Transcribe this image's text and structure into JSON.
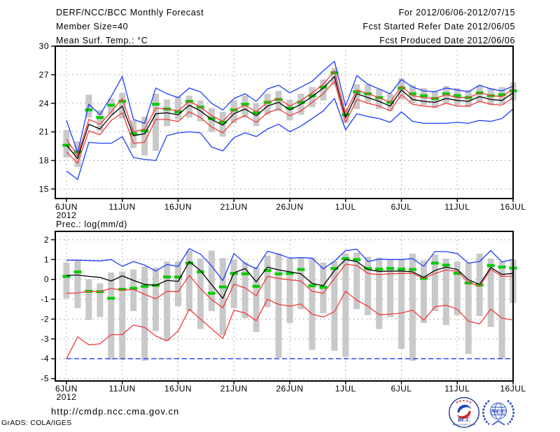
{
  "header": {
    "title": "DERF/NCC/BCC Monthly Forecast",
    "member_size": "Member Size=40",
    "for_range": "For 2012/06/06-2012/07/15",
    "fcst_started": "Fcst Started Refer Date 2012/06/05",
    "fcst_produced": "Fcst Produced Date 2012/06/06"
  },
  "footer": {
    "url": "http://cmdp.ncc.cma.gov.cn",
    "credit": "GrADS: COLA/IGES",
    "bcc_logo_text": "BCC",
    "bcc_logo_subtext": "BEIJING CLIMATE CENTER",
    "ncc_logo_text": "NCC"
  },
  "colors": {
    "blue": "#1e3cff",
    "red": "#f03c3c",
    "green": "#00cc00",
    "black": "#000000",
    "bar_gray": "#c9c9c9",
    "grid_gray": "#999999"
  },
  "chart_data": [
    {
      "type": "line",
      "title": "Mean Surf. Temp.: °C",
      "ylabel": "°C",
      "start_date": "2012/06/06",
      "end_date": "2012/07/15",
      "n_days": 41,
      "ylim": [
        14,
        30
      ],
      "y_ticks": [
        15,
        18,
        21,
        24,
        27,
        30
      ],
      "x_tick_days": [
        0,
        5,
        10,
        15,
        20,
        25,
        30,
        35,
        40
      ],
      "x_tick_labels": [
        "6JUN",
        "11JUN",
        "16JUN",
        "21JUN",
        "26JUN",
        "1JUL",
        "6JUL",
        "11JUL",
        "16JUL"
      ],
      "x_year_label": "2012",
      "grid": true,
      "series": [
        {
          "name": "ensemble-min",
          "color": "#1e3cff",
          "dashed": false,
          "values": [
            16.9,
            16.0,
            19.9,
            19.8,
            19.8,
            20.5,
            18.3,
            18.1,
            18.0,
            20.6,
            20.9,
            21.0,
            20.9,
            19.4,
            19.0,
            20.4,
            20.9,
            20.5,
            21.3,
            21.8,
            21.0,
            21.6,
            22.4,
            23.2,
            24.5,
            21.2,
            22.9,
            22.6,
            22.4,
            22.0,
            23.1,
            22.1,
            21.9,
            21.9,
            21.9,
            22.0,
            21.9,
            22.2,
            22.1,
            22.4,
            23.4
          ]
        },
        {
          "name": "ensemble-max",
          "color": "#1e3cff",
          "dashed": false,
          "values": [
            22.2,
            18.8,
            23.9,
            22.8,
            24.7,
            26.8,
            22.3,
            21.9,
            25.6,
            25.0,
            24.6,
            25.6,
            25.2,
            24.0,
            23.3,
            24.5,
            25.0,
            24.2,
            25.5,
            25.9,
            25.1,
            25.7,
            26.3,
            27.4,
            28.4,
            23.7,
            26.9,
            26.0,
            25.5,
            25.0,
            26.5,
            25.7,
            25.3,
            25.2,
            25.6,
            25.4,
            25.2,
            25.9,
            25.5,
            25.3,
            25.8
          ]
        },
        {
          "name": "lower-quartile",
          "color": "#f03c3c",
          "dashed": false,
          "values": [
            18.9,
            17.7,
            21.1,
            20.7,
            22.2,
            23.0,
            19.8,
            19.9,
            22.3,
            22.3,
            22.1,
            23.1,
            22.5,
            21.5,
            20.9,
            22.2,
            22.7,
            22.0,
            23.0,
            23.4,
            22.7,
            23.2,
            24.1,
            25.0,
            26.3,
            22.0,
            24.4,
            24.0,
            23.7,
            23.2,
            24.9,
            23.9,
            23.7,
            23.6,
            24.0,
            23.7,
            23.7,
            24.2,
            23.9,
            23.8,
            24.6
          ]
        },
        {
          "name": "upper-quartile",
          "color": "#f03c3c",
          "dashed": false,
          "values": [
            20.2,
            18.5,
            22.3,
            21.8,
            23.1,
            24.5,
            21.0,
            21.3,
            23.5,
            23.4,
            23.2,
            24.2,
            23.6,
            22.7,
            22.1,
            23.3,
            23.8,
            23.1,
            24.1,
            24.5,
            23.7,
            24.3,
            25.1,
            26.0,
            27.4,
            23.0,
            25.4,
            25.0,
            24.6,
            24.1,
            25.8,
            24.8,
            24.6,
            24.5,
            24.9,
            24.6,
            24.6,
            25.1,
            24.8,
            24.7,
            25.5
          ]
        },
        {
          "name": "ensemble-mean",
          "color": "#000000",
          "dashed": false,
          "values": [
            19.6,
            18.2,
            21.8,
            21.3,
            22.7,
            23.7,
            20.6,
            20.8,
            22.9,
            23.0,
            22.8,
            23.8,
            23.2,
            22.3,
            21.7,
            22.9,
            23.4,
            22.7,
            23.7,
            24.1,
            23.3,
            23.9,
            24.7,
            25.6,
            26.8,
            22.5,
            25.0,
            24.6,
            24.2,
            23.7,
            25.4,
            24.4,
            24.2,
            24.1,
            24.5,
            24.3,
            24.2,
            24.7,
            24.4,
            24.3,
            25.1
          ]
        }
      ],
      "bars": {
        "name": "climatology-spread-bar",
        "color": "#c9c9c9",
        "top": [
          21.2,
          20.0,
          24.9,
          23.3,
          24.5,
          25.1,
          22.2,
          22.6,
          25.0,
          24.4,
          24.7,
          24.8,
          24.3,
          23.5,
          23.1,
          24.3,
          24.8,
          24.0,
          25.0,
          25.3,
          24.4,
          25.0,
          25.7,
          26.5,
          27.7,
          23.5,
          26.0,
          26.0,
          25.5,
          25.0,
          26.6,
          25.9,
          25.6,
          25.3,
          25.8,
          25.6,
          25.4,
          25.9,
          25.6,
          25.7,
          26.2
        ],
        "bottom": [
          18.3,
          17.3,
          22.5,
          21.1,
          22.8,
          22.4,
          19.3,
          18.5,
          19.0,
          21.6,
          22.3,
          22.5,
          22.1,
          21.0,
          20.5,
          21.9,
          22.5,
          21.6,
          22.8,
          23.2,
          22.2,
          22.8,
          23.6,
          24.3,
          25.9,
          21.9,
          23.4,
          24.1,
          23.4,
          23.2,
          24.4,
          24.0,
          23.8,
          23.5,
          24.0,
          23.8,
          23.6,
          24.1,
          23.8,
          23.9,
          24.3
        ]
      },
      "dashes": {
        "name": "observation-climatology-dash",
        "color": "#00cc00",
        "values": [
          19.6,
          18.9,
          23.3,
          22.5,
          23.8,
          24.2,
          20.8,
          21.1,
          23.9,
          23.4,
          23.1,
          24.2,
          23.6,
          22.4,
          22.0,
          23.3,
          23.9,
          23.0,
          24.1,
          24.4,
          23.5,
          24.1,
          24.8,
          25.7,
          27.2,
          22.8,
          25.2,
          25.0,
          24.6,
          24.1,
          25.6,
          25.0,
          24.8,
          24.5,
          25.0,
          24.8,
          24.6,
          25.1,
          24.8,
          24.9,
          25.3
        ]
      }
    },
    {
      "type": "line",
      "title": "Prec.: log(mm/d)",
      "ylabel": "log(mm/d)",
      "start_date": "2012/06/06",
      "end_date": "2012/07/15",
      "n_days": 41,
      "ylim": [
        -5.12,
        2.42
      ],
      "y_ticks": [
        -5,
        -4,
        -3,
        -2,
        -1,
        0,
        1,
        2
      ],
      "x_tick_days": [
        0,
        5,
        10,
        15,
        20,
        25,
        30,
        35,
        40
      ],
      "x_tick_labels": [
        "6JUN",
        "11JUN",
        "16JUN",
        "21JUN",
        "26JUN",
        "1JUL",
        "6JUL",
        "11JUL",
        "16JUL"
      ],
      "x_year_label": "2012",
      "grid": true,
      "series": [
        {
          "name": "ensemble-min-zero-precip-floor",
          "color": "#1e3cff",
          "dashed": true,
          "values": [
            -4.0,
            -4.0,
            -4.0,
            -4.0,
            -4.0,
            -4.0,
            -4.0,
            -4.0,
            -4.0,
            -4.0,
            -4.0,
            -4.0,
            -4.0,
            -4.0,
            -4.0,
            -4.0,
            -4.0,
            -4.0,
            -4.0,
            -4.0,
            -4.0,
            -4.0,
            -4.0,
            -4.0,
            -4.0,
            -4.0,
            -4.0,
            -4.0,
            -4.0,
            -4.0,
            -4.0,
            -4.0,
            -4.0,
            -4.0,
            -4.0,
            -4.0,
            -4.0,
            -4.0,
            -4.0,
            -4.0,
            -4.0
          ]
        },
        {
          "name": "ensemble-max",
          "color": "#1e3cff",
          "dashed": false,
          "values": [
            0.97,
            0.97,
            0.95,
            0.93,
            1.0,
            0.66,
            0.9,
            0.72,
            0.42,
            0.75,
            0.65,
            1.55,
            1.27,
            0.68,
            -0.06,
            1.3,
            0.8,
            0.54,
            1.42,
            1.27,
            1.07,
            1.1,
            1.07,
            0.53,
            0.92,
            1.45,
            1.52,
            0.9,
            1.02,
            1.0,
            1.0,
            1.05,
            0.66,
            1.4,
            1.4,
            1.3,
            0.82,
            0.9,
            1.45,
            0.88,
            1.0
          ]
        },
        {
          "name": "lower-quartile",
          "color": "#f03c3c",
          "dashed": false,
          "values": [
            -4.0,
            -2.9,
            -3.3,
            -3.25,
            -2.78,
            -2.78,
            -2.3,
            -2.42,
            -2.85,
            -3.1,
            -2.6,
            -1.5,
            -2.0,
            -2.49,
            -2.98,
            -1.55,
            -1.7,
            -2.08,
            -1.0,
            -1.26,
            -1.35,
            -1.24,
            -1.75,
            -1.9,
            -1.63,
            -0.6,
            -1.05,
            -1.35,
            -1.78,
            -1.75,
            -1.7,
            -1.55,
            -2.05,
            -1.38,
            -1.3,
            -1.5,
            -2.1,
            -2.25,
            -1.5,
            -1.95,
            -2.05
          ]
        },
        {
          "name": "upper-quartile",
          "color": "#f03c3c",
          "dashed": false,
          "values": [
            -0.7,
            -0.68,
            -0.6,
            -0.62,
            -0.45,
            -0.55,
            -0.5,
            -0.75,
            -0.98,
            -0.6,
            -0.62,
            0.2,
            -0.47,
            -1.02,
            -1.43,
            -0.24,
            -0.43,
            -0.82,
            0.15,
            0.05,
            -0.02,
            -0.08,
            -0.6,
            -0.7,
            0.05,
            0.76,
            0.7,
            0.3,
            0.24,
            0.28,
            0.3,
            0.3,
            0.05,
            0.3,
            0.48,
            0.4,
            -0.15,
            -0.35,
            0.5,
            0.15,
            0.15
          ]
        },
        {
          "name": "ensemble-mean",
          "color": "#000000",
          "dashed": false,
          "values": [
            0.2,
            0.22,
            0.15,
            0.1,
            -0.08,
            0.18,
            -0.05,
            -0.25,
            -0.3,
            -0.05,
            -0.1,
            0.9,
            0.44,
            -0.26,
            -0.96,
            0.33,
            0.55,
            -0.12,
            0.62,
            0.48,
            0.38,
            0.28,
            -0.2,
            -0.32,
            0.45,
            1.0,
            0.9,
            0.5,
            0.4,
            0.42,
            0.42,
            0.38,
            0.1,
            0.45,
            0.62,
            0.5,
            -0.02,
            -0.25,
            0.6,
            0.25,
            0.3
          ]
        }
      ],
      "bars": {
        "name": "climatology-spread-bar",
        "color": "#c9c9c9",
        "top": [
          0.85,
          1.0,
          0.0,
          -0.2,
          0.35,
          0.4,
          0.5,
          0.65,
          0.6,
          0.9,
          0.9,
          1.45,
          1.06,
          1.45,
          1.07,
          1.0,
          0.87,
          0.63,
          1.2,
          1.3,
          1.05,
          1.1,
          1.1,
          0.85,
          0.9,
          1.3,
          1.35,
          1.15,
          1.1,
          1.0,
          1.0,
          1.3,
          0.95,
          1.25,
          1.05,
          0.9,
          0.85,
          1.3,
          1.05,
          0.9,
          1.0
        ],
        "bottom": [
          -0.95,
          -1.45,
          -2.05,
          -1.9,
          -4.05,
          -4.05,
          -1.6,
          -4.1,
          -2.6,
          -3.1,
          -1.35,
          -1.6,
          -2.5,
          -1.6,
          -2.8,
          -1.45,
          -1.95,
          -2.65,
          -1.4,
          -3.95,
          -2.2,
          -1.5,
          -3.55,
          -1.7,
          -3.6,
          -3.9,
          -1.5,
          -1.8,
          -2.5,
          -1.9,
          -3.5,
          -4.1,
          -2.2,
          -1.6,
          -2.3,
          -1.8,
          -3.75,
          -1.85,
          -2.4,
          -4.0,
          -1.2
        ]
      },
      "dashes": {
        "name": "observation-climatology-dash",
        "color": "#00cc00",
        "values": [
          0.15,
          0.38,
          -0.6,
          -0.62,
          -0.95,
          -0.5,
          -0.45,
          -0.35,
          -0.3,
          0.12,
          0.12,
          0.82,
          0.38,
          -0.7,
          -0.38,
          0.3,
          0.28,
          -0.35,
          0.45,
          0.28,
          0.3,
          0.5,
          -0.32,
          -0.4,
          0.55,
          1.05,
          1.0,
          0.55,
          0.52,
          0.55,
          0.52,
          0.5,
          0.05,
          0.82,
          0.72,
          0.3,
          -0.18,
          -0.28,
          0.7,
          0.62,
          0.57
        ]
      }
    }
  ]
}
